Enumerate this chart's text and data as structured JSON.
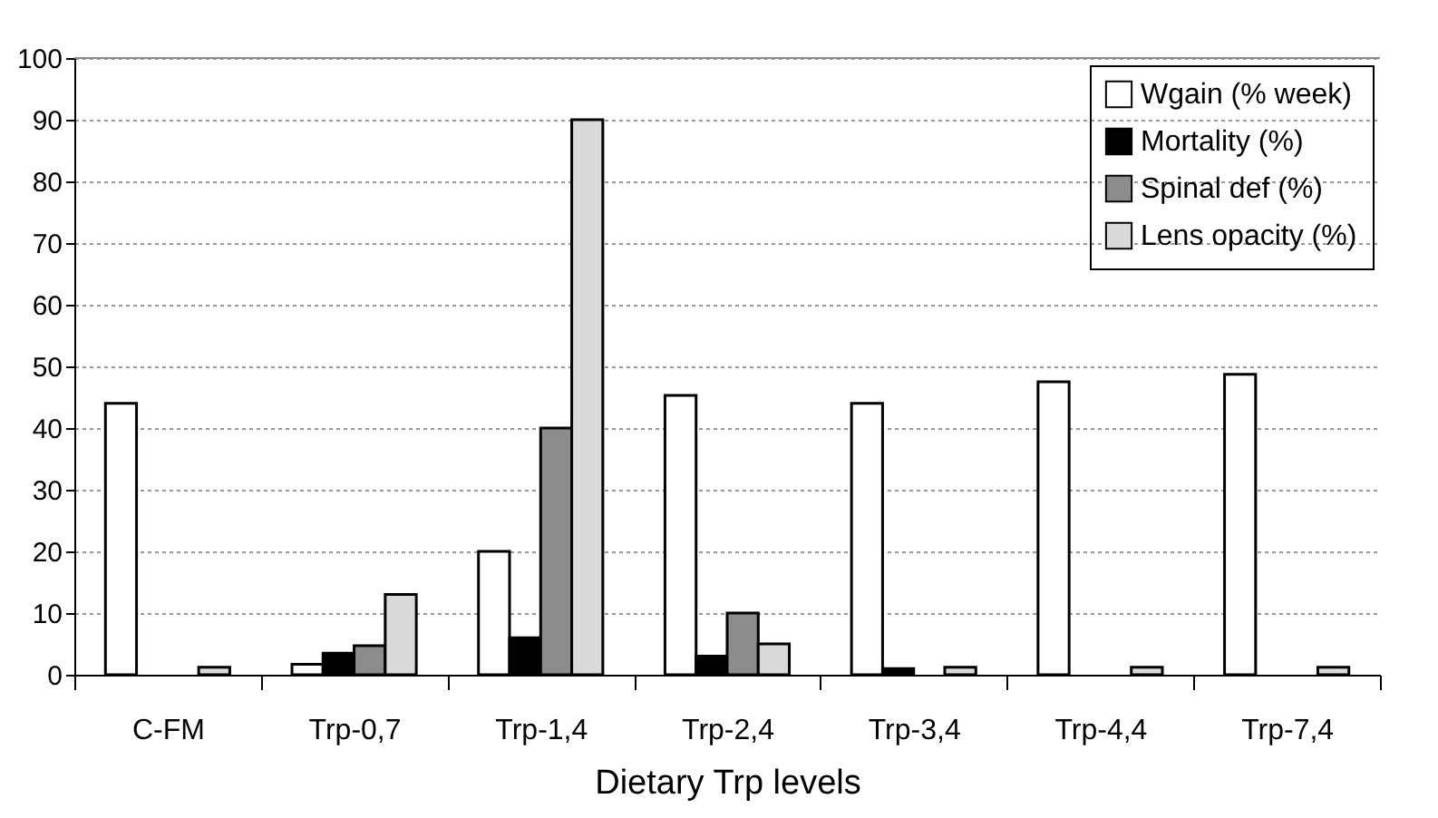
{
  "chart_data": {
    "type": "bar",
    "xlabel": "Dietary Trp levels",
    "categories": [
      "C-FM",
      "Trp-0,7",
      "Trp-1,4",
      "Trp-2,4",
      "Trp-3,4",
      "Trp-4,4",
      "Trp-7,4"
    ],
    "series": [
      {
        "name": "Wgain (% week)",
        "color": "#ffffff",
        "values": [
          44,
          1.7,
          20,
          45.3,
          44,
          47.5,
          48.7
        ]
      },
      {
        "name": "Mortality (%)",
        "color": "#000000",
        "values": [
          null,
          3.5,
          6,
          3,
          1,
          null,
          null
        ]
      },
      {
        "name": "Spinal def (%)",
        "color": "#8c8c8c",
        "values": [
          null,
          4.7,
          40,
          10,
          null,
          null,
          null
        ]
      },
      {
        "name": "Lens opacity (%)",
        "color": "#d9d9d9",
        "values": [
          1.2,
          13,
          90,
          5,
          1.2,
          1.2,
          1.2
        ]
      }
    ],
    "ylim": [
      0,
      100
    ],
    "yticks": [
      0,
      10,
      20,
      30,
      40,
      50,
      60,
      70,
      80,
      90,
      100
    ],
    "grid": "y",
    "legend": "top right"
  }
}
